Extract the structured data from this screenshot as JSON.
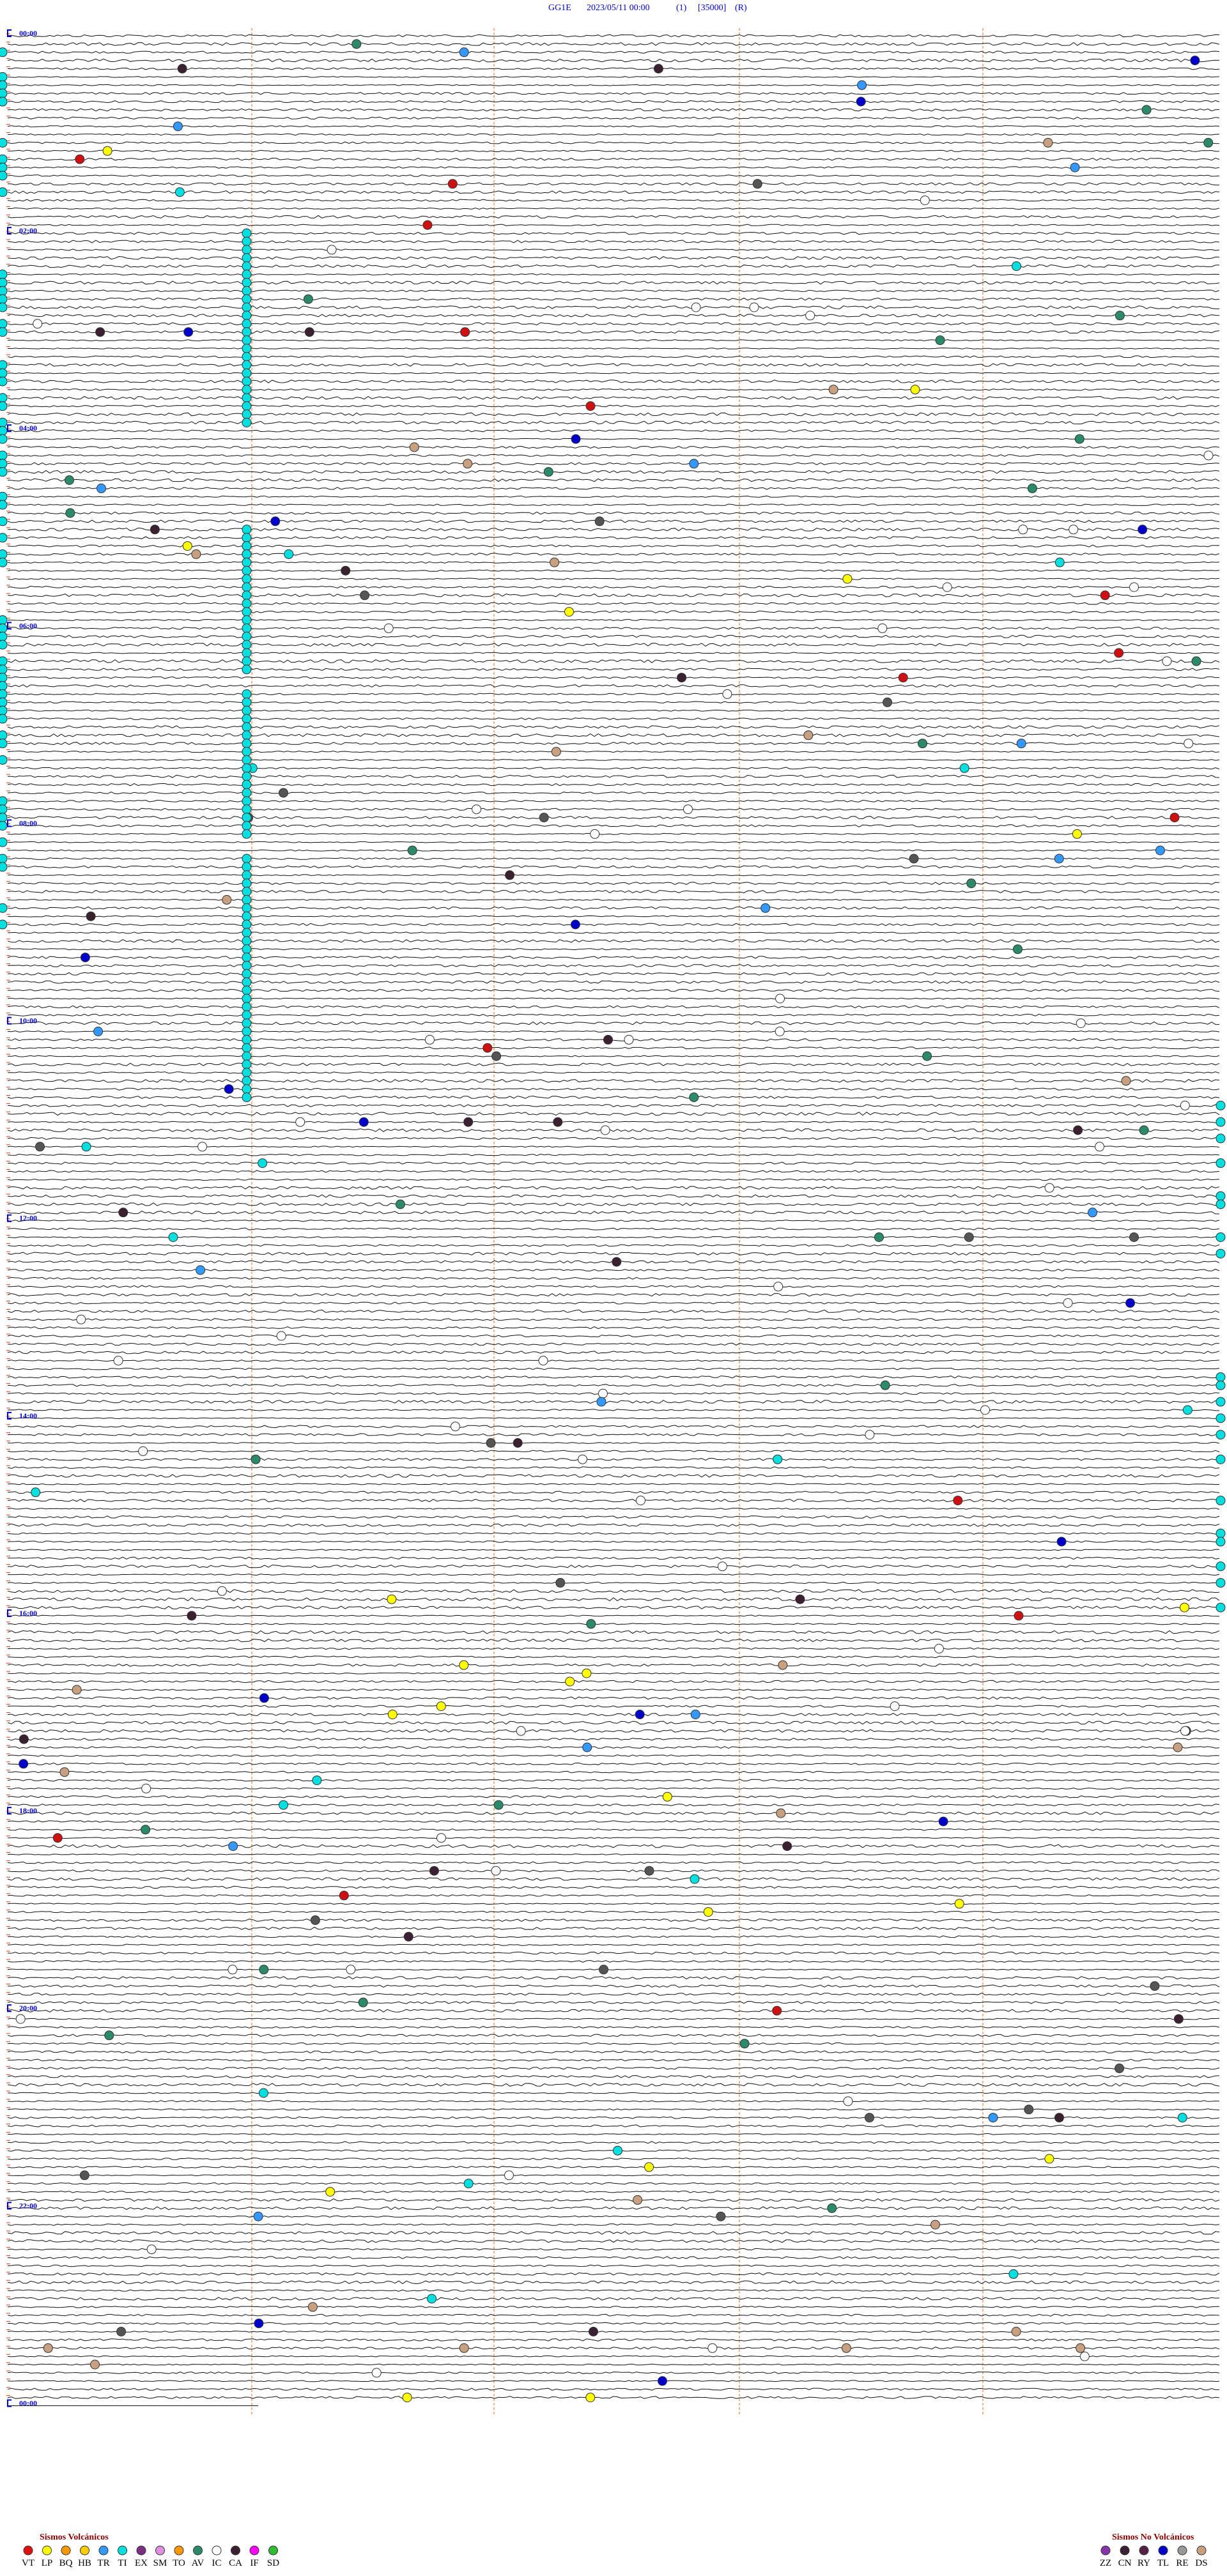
{
  "header": {
    "station": "GG1E",
    "datetime": "2023/05/11 00:00",
    "channel": "(1)",
    "scale": "[35000]",
    "mode": "(R)"
  },
  "hour_labels": [
    "00:00",
    "02:00",
    "04:00",
    "06:00",
    "08:00",
    "10:00",
    "12:00",
    "14:00",
    "16:00",
    "18:00",
    "20:00",
    "22:00",
    "00:00"
  ],
  "legend": {
    "volcanic": {
      "title": "Sismos Volcánicos",
      "codes": [
        "VT",
        "LP",
        "BQ",
        "HB",
        "TR",
        "TI",
        "EX",
        "SM",
        "TO",
        "AV",
        "IC",
        "CA",
        "IF",
        "SD"
      ]
    },
    "non_volcanic": {
      "title": "Sismos No Volcánicos",
      "codes": [
        "ZZ",
        "CN",
        "RY",
        "TL",
        "RE",
        "DS"
      ]
    }
  }
}
